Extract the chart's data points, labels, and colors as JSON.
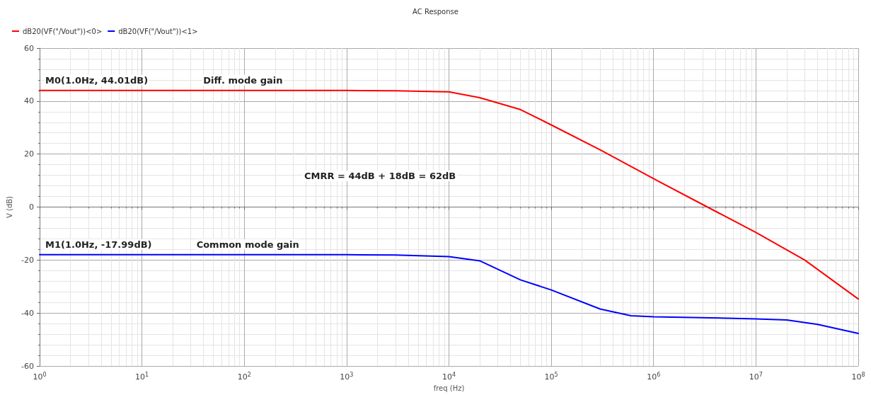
{
  "chart_data": {
    "type": "line",
    "title": "AC Response",
    "xlabel": "freq (Hz)",
    "ylabel": "V (dB)",
    "log": "x",
    "grid": true,
    "legend": "top left",
    "marker": "none",
    "line_style": "solid",
    "xlim": [
      1,
      100000000
    ],
    "xticks": [
      {
        "value": 1,
        "label": "10$^{0}$"
      },
      {
        "value": 10,
        "label": "10$^{1}$"
      },
      {
        "value": 100,
        "label": "10$^{2}$"
      },
      {
        "value": 1000,
        "label": "10$^{3}$"
      },
      {
        "value": 10000,
        "label": "10$^{4}$"
      },
      {
        "value": 100000,
        "label": "10$^{5}$"
      },
      {
        "value": 1000000,
        "label": "10$^{6}$"
      },
      {
        "value": 10000000,
        "label": "10$^{7}$"
      },
      {
        "value": 100000000,
        "label": "10$^{8}$"
      }
    ],
    "ylim": [
      -60,
      60
    ],
    "yticks": [
      -60,
      -40,
      -20,
      0,
      20,
      40,
      60
    ],
    "series": [
      {
        "name": "dB20(VF(\"/Vout\"))<0>",
        "color": "#ff0000",
        "x": [
          1,
          10,
          100,
          1000,
          3000,
          10000,
          20000,
          50000,
          100000,
          300000,
          1000000,
          3000000,
          10000000,
          30000000,
          100000000
        ],
        "values": [
          44,
          44,
          44,
          44,
          43.9,
          43.5,
          41.3,
          36.8,
          31,
          21.6,
          10.7,
          1,
          -9.6,
          -20,
          -34.7
        ]
      },
      {
        "name": "dB20(VF(\"/Vout\"))<1>",
        "color": "#0000ff",
        "x": [
          1,
          10,
          100,
          1000,
          3000,
          10000,
          20000,
          50000,
          100000,
          300000,
          600000,
          1000000,
          10000000,
          20000000,
          40000000,
          100000000
        ],
        "values": [
          -18,
          -18,
          -18,
          -18,
          -18.1,
          -18.7,
          -20.3,
          -27.5,
          -31.3,
          -38.5,
          -41,
          -41.4,
          -42.2,
          -42.6,
          -44.3,
          -47.7
        ]
      }
    ],
    "annotations": [
      {
        "text": "M0(1.0Hz, 44.01dB)",
        "x": 1,
        "y": 44.01
      },
      {
        "text": "Diff. mode gain",
        "x": 35,
        "y": 44
      },
      {
        "text": "M1(1.0Hz, -17.99dB)",
        "x": 1,
        "y": -17.99
      },
      {
        "text": "Common mode gain",
        "x": 30,
        "y": -18
      },
      "CMRR = 44dB + 18dB = 62dB"
    ]
  }
}
